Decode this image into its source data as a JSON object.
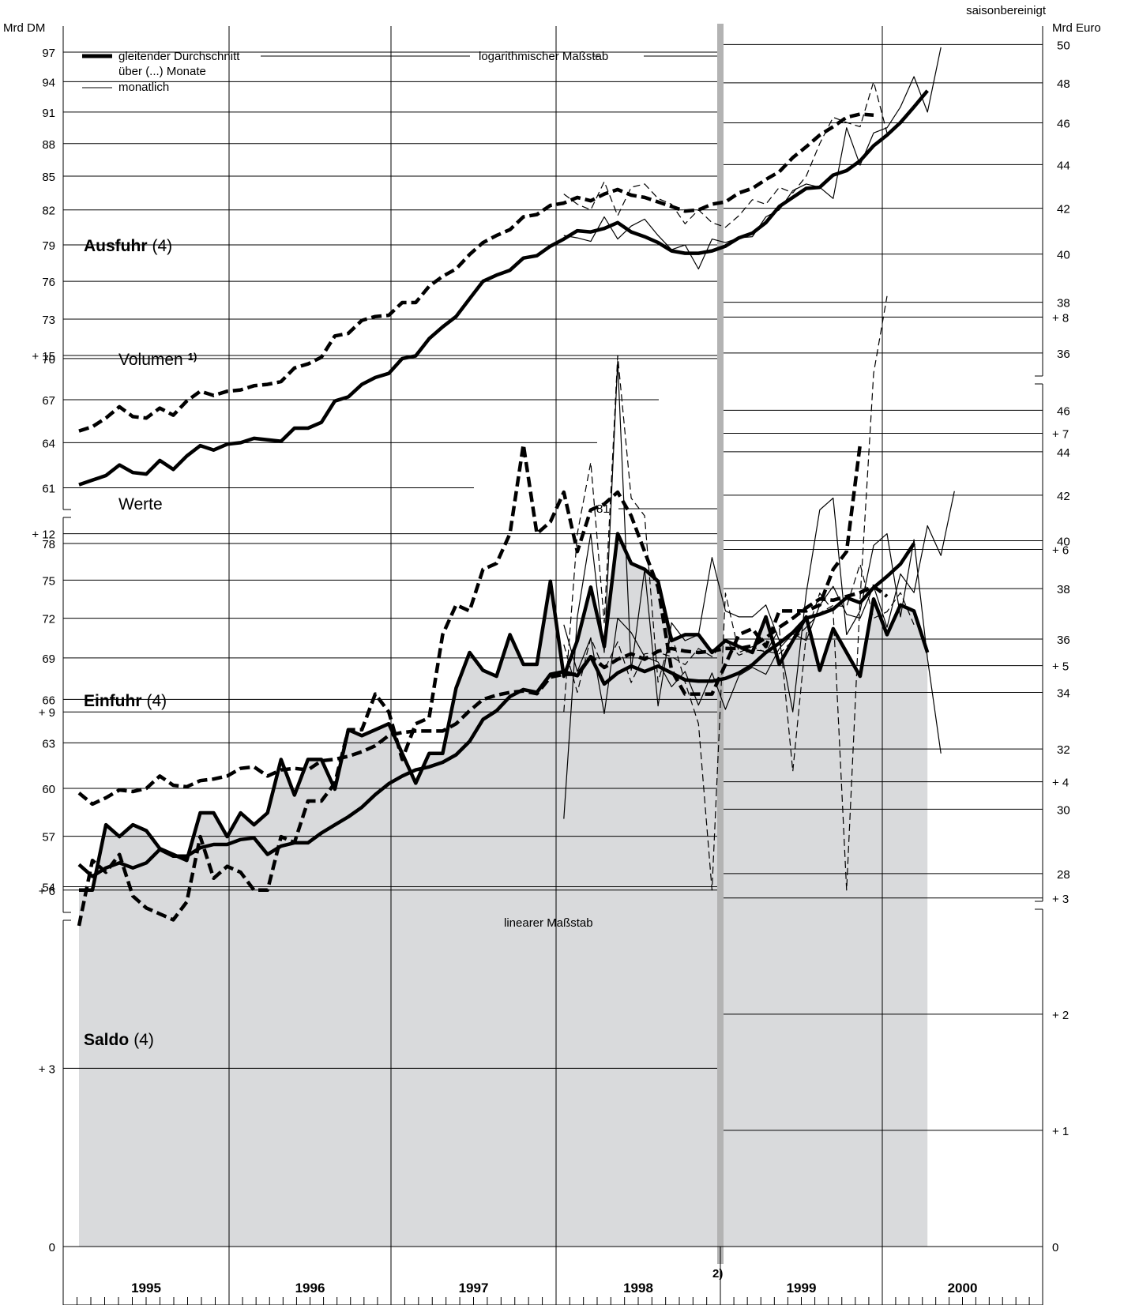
{
  "header": {
    "season_note": "saisonbereinigt",
    "unit_left": "Mrd DM",
    "unit_right": "Mrd Euro",
    "log_scale_label": "logarithmischer Maßstab",
    "linear_scale_label": "linearer Maßstab",
    "euro_footnote_marker": "2)"
  },
  "legend": {
    "moving_average": "gleitender Durchschnitt",
    "moving_average_2": "über (...) Monate",
    "monthly": "monatlich"
  },
  "panels": {
    "ausfuhr": {
      "title": "Ausfuhr",
      "note": "(4)"
    },
    "einfuhr": {
      "title": "Einfuhr",
      "note": "(4)"
    },
    "saldo": {
      "title": "Saldo",
      "note": "(4)"
    },
    "volumen_label": "Volumen",
    "volumen_footnote": "1)",
    "werte_label": "Werte",
    "einfuhr_volumen_ref": "81"
  },
  "axes": {
    "ausfuhr_left_ticks": [
      "97",
      "94",
      "91",
      "88",
      "85",
      "82",
      "79",
      "76",
      "73",
      "70",
      "67",
      "64",
      "61"
    ],
    "ausfuhr_right_ticks": [
      "50",
      "48",
      "46",
      "44",
      "42",
      "40",
      "38",
      "36"
    ],
    "einfuhr_left_ticks": [
      "78",
      "75",
      "72",
      "69",
      "66",
      "63",
      "60",
      "57",
      "54"
    ],
    "einfuhr_right_ticks": [
      "46",
      "44",
      "42",
      "40",
      "38",
      "36",
      "34",
      "32",
      "30",
      "28"
    ],
    "saldo_left_ticks": [
      "+ 15",
      "+ 12",
      "+  9",
      "+  6",
      "+  3",
      "0"
    ],
    "saldo_right_ticks": [
      "+ 8",
      "+ 7",
      "+ 6",
      "+ 5",
      "+ 4",
      "+ 3",
      "+ 2",
      "+ 1",
      "0"
    ],
    "years": [
      "1995",
      "1996",
      "1997",
      "1998",
      "1999",
      "2000"
    ]
  },
  "colors": {
    "line": "#000000",
    "saldo_fill": "#d9dadc",
    "euro_marker": "#b3b3b3"
  },
  "chart_data": [
    {
      "type": "line",
      "title": "Ausfuhr (4)",
      "scale": "log",
      "ylabel": "Mrd DM",
      "ylabel_right": "Mrd Euro",
      "ylim": [
        60,
        99
      ],
      "x_start": "1995-01",
      "series": [
        {
          "name": "Werte",
          "style": "solid-thick",
          "values": [
            61.2,
            61.5,
            61.8,
            62.5,
            62.0,
            61.9,
            62.8,
            62.2,
            63.1,
            63.8,
            63.5,
            63.9,
            64.0,
            64.3,
            64.2,
            64.1,
            65.0,
            65.0,
            65.4,
            66.9,
            67.2,
            68.1,
            68.6,
            68.9,
            70.0,
            70.2,
            71.5,
            72.4,
            73.2,
            74.6,
            76.0,
            76.5,
            76.9,
            77.9,
            78.1,
            78.9,
            79.5,
            80.2,
            80.1,
            80.4,
            80.9,
            80.1,
            79.7,
            79.2,
            78.5,
            78.3,
            78.3,
            78.5,
            78.9,
            79.6,
            80.0,
            80.9,
            82.3,
            83.1,
            83.9,
            84.0,
            85.1,
            85.5,
            86.4,
            87.8,
            88.8,
            90.0,
            91.5,
            93.1
          ]
        },
        {
          "name": "Werte",
          "style": "solid-thin",
          "values": [
            null,
            null,
            null,
            null,
            null,
            null,
            null,
            null,
            null,
            null,
            null,
            null,
            null,
            null,
            null,
            null,
            null,
            null,
            null,
            null,
            null,
            null,
            null,
            null,
            null,
            null,
            null,
            null,
            null,
            null,
            null,
            null,
            null,
            null,
            null,
            null,
            79.8,
            79.6,
            79.3,
            81.4,
            79.5,
            80.6,
            81.2,
            79.8,
            78.6,
            79.0,
            77.0,
            79.5,
            79.2,
            79.6,
            79.7,
            81.4,
            82.0,
            83.7,
            84.3,
            84.0,
            83.0,
            89.5,
            86.0,
            89.0,
            89.5,
            91.5,
            94.5,
            91.0,
            97.5
          ]
        },
        {
          "name": "Volumen",
          "style": "dashed-thick",
          "values": [
            64.8,
            65.1,
            65.7,
            66.5,
            65.8,
            65.7,
            66.4,
            65.9,
            66.9,
            67.6,
            67.3,
            67.6,
            67.7,
            68.0,
            68.1,
            68.3,
            69.3,
            69.6,
            70.1,
            71.7,
            71.9,
            72.9,
            73.2,
            73.3,
            74.3,
            74.3,
            75.6,
            76.4,
            77.0,
            78.2,
            79.2,
            79.8,
            80.3,
            81.4,
            81.6,
            82.4,
            82.6,
            83.1,
            82.8,
            83.4,
            83.8,
            83.3,
            83.1,
            82.7,
            82.3,
            81.9,
            82.0,
            82.5,
            82.7,
            83.5,
            83.9,
            84.7,
            85.4,
            86.7,
            87.7,
            88.8,
            89.6,
            90.5,
            90.8,
            90.7
          ]
        },
        {
          "name": "Volumen",
          "style": "dashed-thin",
          "values": [
            null,
            null,
            null,
            null,
            null,
            null,
            null,
            null,
            null,
            null,
            null,
            null,
            null,
            null,
            null,
            null,
            null,
            null,
            null,
            null,
            null,
            null,
            null,
            null,
            null,
            null,
            null,
            null,
            null,
            null,
            null,
            null,
            null,
            null,
            null,
            null,
            83.4,
            82.5,
            82.0,
            84.5,
            81.5,
            84.0,
            84.3,
            83.0,
            82.5,
            80.8,
            82.0,
            80.9,
            80.5,
            81.5,
            82.9,
            82.5,
            84.0,
            83.5,
            85.0,
            88.0,
            90.5,
            90.0,
            89.6,
            94.0,
            89.0
          ]
        }
      ]
    },
    {
      "type": "line",
      "title": "Einfuhr (4)",
      "scale": "log",
      "ylabel": "Mrd DM",
      "ylabel_right": "Mrd Euro",
      "ylim": [
        53,
        80
      ],
      "x_start": "1995-01",
      "series": [
        {
          "name": "Werte",
          "style": "solid-thick",
          "values": [
            55.3,
            54.6,
            55.1,
            55.4,
            55.1,
            55.4,
            56.2,
            55.8,
            55.8,
            56.3,
            56.5,
            56.5,
            56.8,
            56.9,
            55.9,
            56.4,
            56.6,
            56.6,
            57.2,
            57.7,
            58.2,
            58.8,
            59.6,
            60.3,
            60.8,
            61.2,
            61.4,
            61.7,
            62.2,
            63.1,
            64.6,
            65.2,
            66.2,
            66.7,
            66.5,
            67.8,
            68.0,
            67.7,
            69.1,
            67.1,
            67.9,
            68.4,
            68.0,
            68.4,
            67.9,
            67.4,
            67.3,
            67.3,
            67.5,
            67.9,
            68.5,
            69.4,
            70.1,
            70.9,
            72.0,
            72.3,
            72.7,
            73.6,
            73.2,
            74.4,
            75.3,
            76.3,
            78.0
          ]
        },
        {
          "name": "Werte",
          "style": "solid-thin",
          "values": [
            null,
            null,
            null,
            null,
            null,
            null,
            null,
            null,
            null,
            null,
            null,
            null,
            null,
            null,
            null,
            null,
            null,
            null,
            null,
            null,
            null,
            null,
            null,
            null,
            null,
            null,
            null,
            null,
            null,
            null,
            null,
            null,
            null,
            null,
            null,
            null,
            71.5,
            68.0,
            70.5,
            65.0,
            72.0,
            70.9,
            69.1,
            68.7,
            66.9,
            68.0,
            65.6,
            67.9,
            65.3,
            67.7,
            68.3,
            67.8,
            69.7,
            70.8,
            70.3,
            73.0,
            74.5,
            72.3,
            72.0,
            74.5,
            71.3,
            75.5,
            74.0,
            79.5,
            77.0,
            82.5
          ]
        },
        {
          "name": "Volumen",
          "style": "dashed-thick",
          "values": [
            59.7,
            59.0,
            59.4,
            59.9,
            59.8,
            60.0,
            60.8,
            60.2,
            60.1,
            60.5,
            60.6,
            60.8,
            61.3,
            61.4,
            60.8,
            61.2,
            61.3,
            61.2,
            61.8,
            61.9,
            62.1,
            62.4,
            62.8,
            63.5,
            63.7,
            63.8,
            63.8,
            63.8,
            64.3,
            65.2,
            66.0,
            66.3,
            66.5,
            66.6,
            66.4,
            67.6,
            67.8,
            67.8,
            69.1,
            68.3,
            68.9,
            69.3,
            68.9,
            69.5,
            69.7,
            69.5,
            69.4,
            69.5,
            69.7,
            69.7,
            69.9,
            70.5,
            71.3,
            72.0,
            72.8,
            73.5,
            73.4,
            73.7,
            74.0,
            74.5,
            73.7
          ]
        },
        {
          "name": "Volumen",
          "style": "dashed-thin",
          "values": [
            null,
            null,
            null,
            null,
            null,
            null,
            null,
            null,
            null,
            null,
            null,
            null,
            null,
            null,
            null,
            null,
            null,
            null,
            null,
            null,
            null,
            null,
            null,
            null,
            null,
            null,
            null,
            null,
            null,
            null,
            null,
            null,
            null,
            null,
            null,
            null,
            70.0,
            66.5,
            70.5,
            68.1,
            70.2,
            67.2,
            69.3,
            69.4,
            69.1,
            68.5,
            69.7,
            69.1,
            70.3,
            69.2,
            69.6,
            69.5,
            69.3,
            70.3,
            71.3,
            72.4,
            73.0,
            72.9,
            76.3,
            72.0,
            72.5,
            74.0,
            71.5
          ]
        }
      ]
    },
    {
      "type": "area",
      "title": "Saldo (4)",
      "scale": "linear",
      "ylabel": "Mrd DM",
      "ylabel_right": "Mrd Euro",
      "ylim": [
        0,
        15
      ],
      "x_start": "1995-01",
      "series": [
        {
          "name": "Werte",
          "style": "solid-thick-filled",
          "values": [
            6.0,
            6.0,
            7.1,
            6.9,
            7.1,
            7.0,
            6.7,
            6.6,
            6.5,
            7.3,
            7.3,
            6.9,
            7.3,
            7.1,
            7.3,
            8.2,
            7.6,
            8.2,
            8.2,
            7.7,
            8.7,
            8.6,
            8.7,
            8.8,
            8.3,
            7.8,
            8.3,
            8.3,
            9.4,
            10.0,
            9.7,
            9.6,
            10.3,
            9.8,
            9.8,
            11.2,
            9.6,
            10.2,
            11.1,
            10.1,
            12.0,
            11.5,
            11.4,
            11.2,
            10.2,
            10.3,
            10.3,
            10.0,
            10.2,
            10.1,
            10.0,
            10.6,
            9.8,
            10.2,
            10.6,
            9.7,
            10.4,
            10.0,
            9.6,
            10.9,
            10.3,
            10.8,
            10.7,
            10.0
          ]
        },
        {
          "name": "Werte",
          "style": "solid-thin",
          "values": [
            null,
            null,
            null,
            null,
            null,
            null,
            null,
            null,
            null,
            null,
            null,
            null,
            null,
            null,
            null,
            null,
            null,
            null,
            null,
            null,
            null,
            null,
            null,
            null,
            null,
            null,
            null,
            null,
            null,
            null,
            null,
            null,
            null,
            null,
            null,
            null,
            7.2,
            10.6,
            12.0,
            10.0,
            14.9,
            9.7,
            11.4,
            9.1,
            10.5,
            10.2,
            10.3,
            11.6,
            10.7,
            10.6,
            10.6,
            10.8,
            10.2,
            9.0,
            11.0,
            12.4,
            12.6,
            10.3,
            10.7,
            11.8,
            12.0,
            10.6,
            11.9,
            9.9,
            8.3
          ]
        },
        {
          "name": "Volumen",
          "style": "dashed-thick",
          "values": [
            5.4,
            6.5,
            6.3,
            6.6,
            5.9,
            5.7,
            5.6,
            5.5,
            5.8,
            6.9,
            6.2,
            6.4,
            6.3,
            6.0,
            6.0,
            6.9,
            6.8,
            7.5,
            7.5,
            7.8,
            8.7,
            8.7,
            9.3,
            9.0,
            8.2,
            8.8,
            8.9,
            10.3,
            10.8,
            10.7,
            11.4,
            11.5,
            12.0,
            13.5,
            12.0,
            12.2,
            12.7,
            11.7,
            12.4,
            12.5,
            12.7,
            12.3,
            11.7,
            11.1,
            9.7,
            9.3,
            9.3,
            9.3,
            9.8,
            10.3,
            10.4,
            10.1,
            10.7,
            10.7,
            10.7,
            10.8,
            11.4,
            11.7,
            13.5
          ]
        },
        {
          "name": "Volumen",
          "style": "dashed-thin",
          "values": [
            null,
            null,
            null,
            null,
            null,
            null,
            null,
            null,
            null,
            null,
            null,
            null,
            null,
            null,
            null,
            null,
            null,
            null,
            null,
            null,
            null,
            null,
            null,
            null,
            null,
            null,
            null,
            null,
            null,
            null,
            null,
            null,
            null,
            null,
            null,
            null,
            9.0,
            12.0,
            13.2,
            10.5,
            15.0,
            12.6,
            12.3,
            9.5,
            10.3,
            9.5,
            8.8,
            6.0,
            11.0,
            10.0,
            10.1,
            10.0,
            10.4,
            8.0,
            10.3,
            11.0,
            10.7,
            6.0,
            10.9,
            14.7,
            16.0
          ]
        }
      ]
    }
  ]
}
